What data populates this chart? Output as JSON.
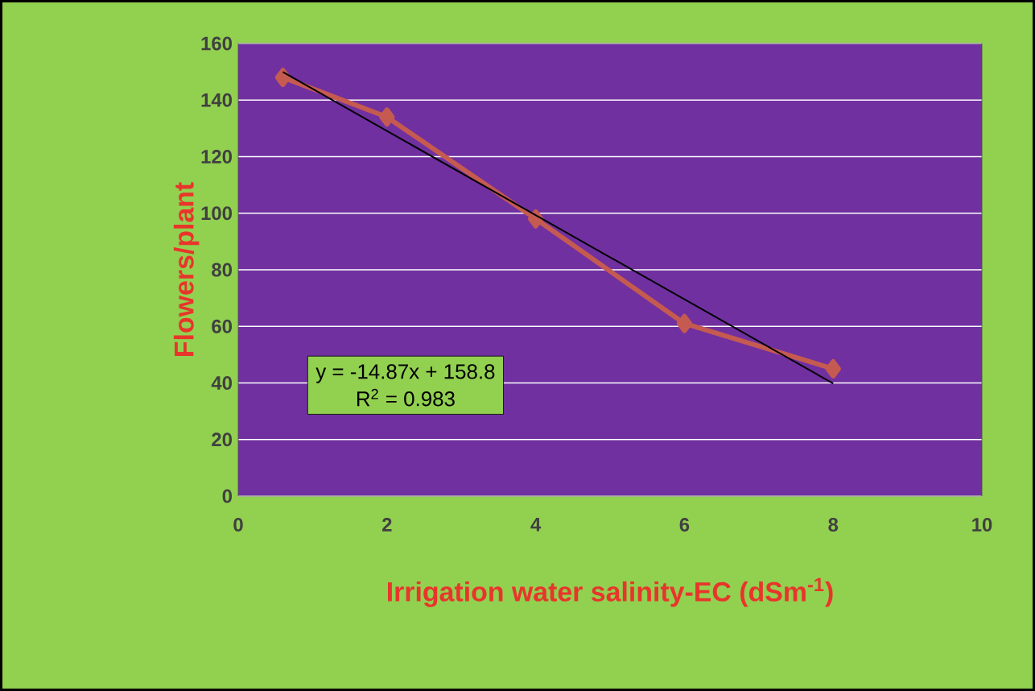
{
  "chart_data": {
    "type": "line",
    "xlabel": "Irrigation water salinity-EC (dSm$^{-1}$)",
    "ylabel": "Flowers/plant",
    "series": [
      {
        "color": "#c55a50",
        "x": [
          0.6,
          2,
          4,
          6,
          8
        ],
        "values": [
          148,
          134,
          98,
          61,
          45
        ],
        "marker": "diamond",
        "line_style": "solid"
      },
      {
        "color": "#000000",
        "x": [
          0.6,
          8
        ],
        "values": [
          149.9,
          39.8
        ],
        "marker": "none",
        "line_style": "solid"
      }
    ],
    "xlim": [
      0,
      10
    ],
    "xticks": [
      0,
      2,
      4,
      6,
      8,
      10
    ],
    "ylim": [
      0,
      160
    ],
    "yticks": [
      0,
      20,
      40,
      60,
      80,
      100,
      120,
      140,
      160
    ],
    "grid": "y",
    "annotations": [
      "y = -14.87x + 158.8",
      "R$^{2}$ = 0.983"
    ]
  }
}
